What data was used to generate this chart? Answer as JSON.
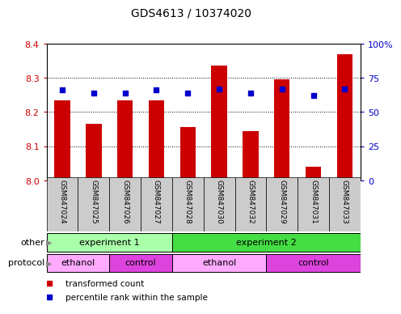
{
  "title": "GDS4613 / 10374020",
  "samples": [
    "GSM847024",
    "GSM847025",
    "GSM847026",
    "GSM847027",
    "GSM847028",
    "GSM847030",
    "GSM847032",
    "GSM847029",
    "GSM847031",
    "GSM847033"
  ],
  "bar_values": [
    8.235,
    8.165,
    8.235,
    8.235,
    8.155,
    8.335,
    8.145,
    8.295,
    8.04,
    8.37
  ],
  "percentile_values": [
    66,
    64,
    64,
    66,
    64,
    67,
    64,
    67,
    62,
    67
  ],
  "ylim_left": [
    8.0,
    8.4
  ],
  "ylim_right": [
    0,
    100
  ],
  "yticks_left": [
    8.0,
    8.1,
    8.2,
    8.3,
    8.4
  ],
  "yticks_right": [
    0,
    25,
    50,
    75,
    100
  ],
  "bar_color": "#cc0000",
  "dot_color": "#0000cc",
  "bar_width": 0.5,
  "grid_color": "#000000",
  "other_row": [
    {
      "label": "experiment 1",
      "start": 0,
      "end": 4,
      "color": "#aaffaa"
    },
    {
      "label": "experiment 2",
      "start": 4,
      "end": 10,
      "color": "#44dd44"
    }
  ],
  "protocol_row": [
    {
      "label": "ethanol",
      "start": 0,
      "end": 2,
      "color": "#ffaaff"
    },
    {
      "label": "control",
      "start": 2,
      "end": 4,
      "color": "#dd44dd"
    },
    {
      "label": "ethanol",
      "start": 4,
      "end": 7,
      "color": "#ffaaff"
    },
    {
      "label": "control",
      "start": 7,
      "end": 10,
      "color": "#dd44dd"
    }
  ],
  "legend_items": [
    {
      "label": "transformed count",
      "color": "#cc0000"
    },
    {
      "label": "percentile rank within the sample",
      "color": "#0000cc"
    }
  ],
  "left_tick_color": "#cc0000",
  "right_tick_color": "#0000cc",
  "background_color": "#ffffff",
  "plot_bg_color": "#ffffff",
  "tick_label_area_color": "#cccccc",
  "row_label_color": "#888888",
  "right_axis_labels": [
    "0",
    "25",
    "50",
    "75",
    "100%"
  ]
}
